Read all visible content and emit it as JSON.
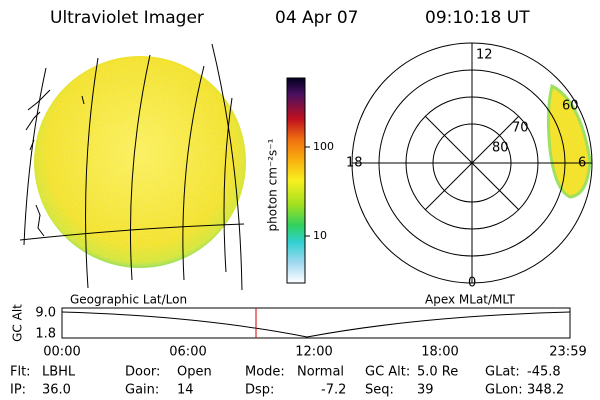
{
  "header": {
    "title": "Ultraviolet Imager",
    "date": "04 Apr 07",
    "time": "09:10:18 UT"
  },
  "colorbar": {
    "label": "photon cm⁻²s⁻¹",
    "ticks": [
      "100",
      "10"
    ]
  },
  "polar": {
    "mlt_labels": [
      "12",
      "18",
      "6",
      "0"
    ],
    "lat_labels": [
      "60",
      "70",
      "80"
    ]
  },
  "panel_titles": [
    "Geographic Lat/Lon",
    "Apex MLat/MLT"
  ],
  "orbit": {
    "ylabel": "GC Alt",
    "yticks": [
      "9.0",
      "1.8"
    ],
    "xticks": [
      "00:00",
      "06:00",
      "12:00",
      "18:00",
      "23:59"
    ]
  },
  "footer": {
    "rows": [
      [
        {
          "label": "Flt:",
          "value": "LBHL"
        },
        {
          "label": "Door:",
          "value": "Open"
        },
        {
          "label": "Mode:",
          "value": "Normal"
        },
        {
          "label": "GC Alt:",
          "value": "5.0 Re"
        },
        {
          "label": "GLat:",
          "value": "-45.8"
        }
      ],
      [
        {
          "label": "IP:",
          "value": "36.0"
        },
        {
          "label": "Gain:",
          "value": "14"
        },
        {
          "label": "Dsp:",
          "value": "-7.2"
        },
        {
          "label": "Seq:",
          "value": "39"
        },
        {
          "label": "GLon:",
          "value": "348.2"
        }
      ]
    ]
  }
}
